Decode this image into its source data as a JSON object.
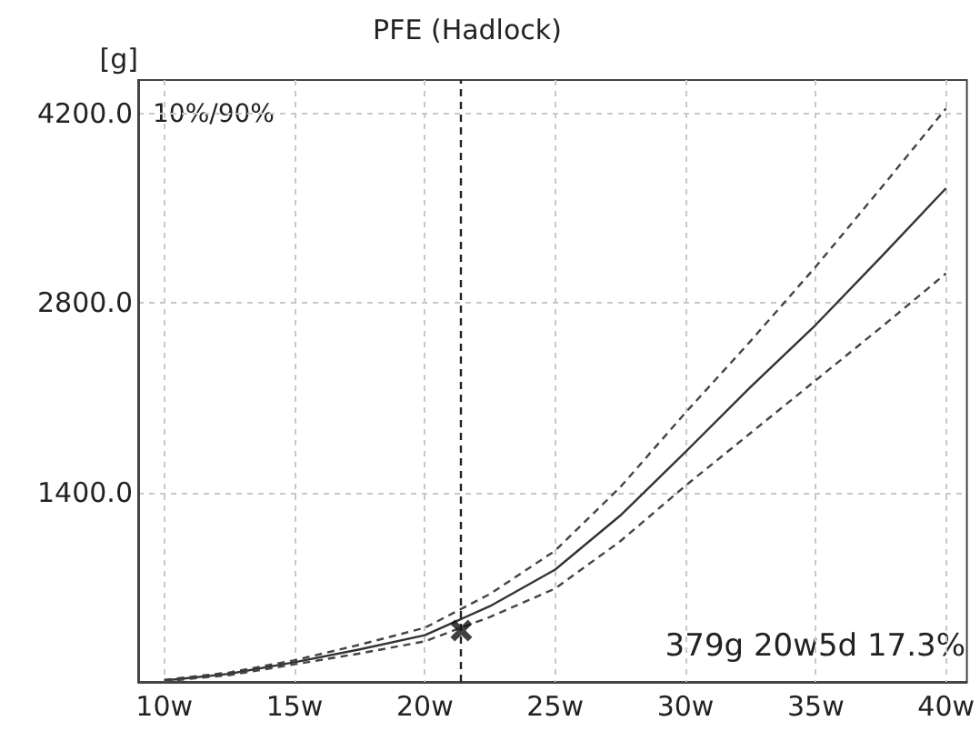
{
  "chart_data": {
    "type": "line",
    "title": "PFE (Hadlock)",
    "ylabel": "[g]",
    "x": [
      10,
      12.5,
      15,
      17.5,
      20,
      22.5,
      25,
      27.5,
      30,
      32.5,
      35,
      37.5,
      40
    ],
    "series": [
      {
        "color": "#444444",
        "line_style": "dashed",
        "marker": "none",
        "values": [
          15,
          70,
          160,
          275,
          400,
          650,
          970,
          1440,
          1990,
          2520,
          3070,
          3650,
          4240
        ]
      },
      {
        "color": "#333333",
        "line_style": "solid",
        "marker": "none",
        "values": [
          10,
          60,
          145,
          240,
          345,
          560,
          830,
          1230,
          1700,
          2180,
          2640,
          3140,
          3650
        ]
      },
      {
        "color": "#444444",
        "line_style": "dashed",
        "marker": "none",
        "values": [
          5,
          50,
          130,
          210,
          300,
          480,
          690,
          1040,
          1450,
          1840,
          2230,
          2620,
          3020
        ]
      },
      {
        "type": "scatter",
        "color": "#111111",
        "marker": "cross",
        "x": [
          21.4
        ],
        "values": [
          379
        ]
      }
    ],
    "xlim": [
      9,
      40.8
    ],
    "ylim": [
      0,
      4450
    ],
    "xticks": [
      {
        "value": 10,
        "label": "10w"
      },
      {
        "value": 15,
        "label": "15w"
      },
      {
        "value": 20,
        "label": "20w"
      },
      {
        "value": 25,
        "label": "25w"
      },
      {
        "value": 30,
        "label": "30w"
      },
      {
        "value": 35,
        "label": "35w"
      },
      {
        "value": 40,
        "label": "40w"
      }
    ],
    "yticks": [
      {
        "value": 1400,
        "label": "1400.0"
      },
      {
        "value": 2800,
        "label": "2800.0"
      },
      {
        "value": 4200,
        "label": "4200.0"
      }
    ],
    "ref_lines": [
      {
        "axis": "x",
        "value": 21.4,
        "color": "#222222",
        "line_style": "dashed"
      }
    ],
    "annotations": [
      "10%/90%",
      "379g 20w5d 17.3%"
    ],
    "grid": true
  }
}
